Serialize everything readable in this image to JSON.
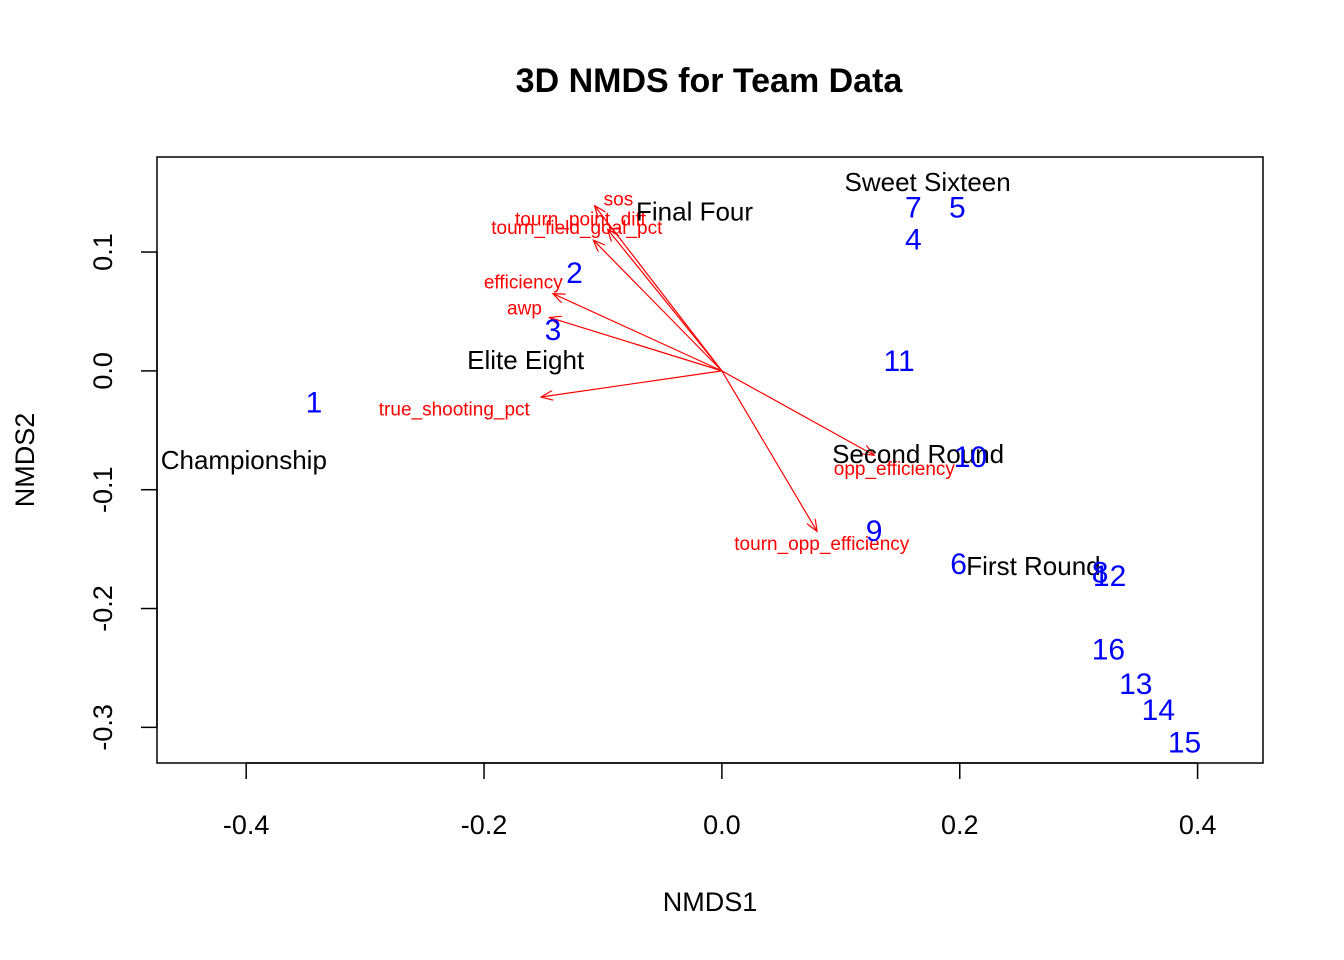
{
  "chart_data": {
    "type": "scatter",
    "title": "3D NMDS for Team Data",
    "xlabel": "NMDS1",
    "ylabel": "NMDS2",
    "xlim": [
      -0.475,
      0.455
    ],
    "ylim": [
      -0.33,
      0.18
    ],
    "xticks": [
      -0.4,
      -0.2,
      0.0,
      0.2,
      0.4
    ],
    "xtick_labels": [
      "-0.4",
      "-0.2",
      "0.0",
      "0.2",
      "0.4"
    ],
    "yticks": [
      -0.3,
      -0.2,
      -0.1,
      0.0,
      0.1
    ],
    "ytick_labels": [
      "-0.3",
      "-0.2",
      "-0.1",
      "0.0",
      "0.1"
    ],
    "grid": false,
    "colors": {
      "sites": "#0000ff",
      "vectors": "#ff0000",
      "groups": "#000000",
      "axes": "#000000"
    },
    "sites": [
      {
        "label": "1",
        "x": -0.343,
        "y": -0.027
      },
      {
        "label": "2",
        "x": -0.124,
        "y": 0.082
      },
      {
        "label": "3",
        "x": -0.142,
        "y": 0.034
      },
      {
        "label": "4",
        "x": 0.161,
        "y": 0.11
      },
      {
        "label": "5",
        "x": 0.198,
        "y": 0.137
      },
      {
        "label": "6",
        "x": 0.199,
        "y": -0.163
      },
      {
        "label": "7",
        "x": 0.161,
        "y": 0.137
      },
      {
        "label": "8",
        "x": 0.318,
        "y": -0.17
      },
      {
        "label": "9",
        "x": 0.128,
        "y": -0.135
      },
      {
        "label": "10",
        "x": 0.209,
        "y": -0.073
      },
      {
        "label": "11",
        "x": 0.149,
        "y": 0.008
      },
      {
        "label": "12",
        "x": 0.326,
        "y": -0.173
      },
      {
        "label": "13",
        "x": 0.348,
        "y": -0.264
      },
      {
        "label": "14",
        "x": 0.367,
        "y": -0.286
      },
      {
        "label": "15",
        "x": 0.389,
        "y": -0.313
      },
      {
        "label": "16",
        "x": 0.325,
        "y": -0.235
      }
    ],
    "groups": [
      {
        "label": "Sweet Sixteen",
        "x": 0.173,
        "y": 0.159
      },
      {
        "label": "Final Four",
        "x": -0.023,
        "y": 0.134
      },
      {
        "label": "Elite Eight",
        "x": -0.165,
        "y": 0.009
      },
      {
        "label": "Championship",
        "x": -0.402,
        "y": -0.075
      },
      {
        "label": "Second Round",
        "x": 0.165,
        "y": -0.07
      },
      {
        "label": "First Round",
        "x": 0.262,
        "y": -0.164
      }
    ],
    "vectors": [
      {
        "label": "sos",
        "x": -0.107,
        "y": 0.139,
        "lx": -0.087,
        "ly": 0.144
      },
      {
        "label": "tourn_point_diff",
        "x": -0.096,
        "y": 0.119,
        "lx": -0.119,
        "ly": 0.127
      },
      {
        "label": "tourn_field_goal_pct",
        "x": -0.108,
        "y": 0.11,
        "lx": -0.122,
        "ly": 0.12
      },
      {
        "label": "efficiency",
        "x": -0.142,
        "y": 0.065,
        "lx": -0.167,
        "ly": 0.074
      },
      {
        "label": "awp",
        "x": -0.145,
        "y": 0.045,
        "lx": -0.166,
        "ly": 0.052
      },
      {
        "label": "true_shooting_pct",
        "x": -0.152,
        "y": -0.022,
        "lx": -0.225,
        "ly": -0.033
      },
      {
        "label": "opp_efficiency",
        "x": 0.128,
        "y": -0.071,
        "lx": 0.145,
        "ly": -0.083
      },
      {
        "label": "tourn_opp_efficiency",
        "x": 0.08,
        "y": -0.135,
        "lx": 0.084,
        "ly": -0.146
      }
    ]
  }
}
